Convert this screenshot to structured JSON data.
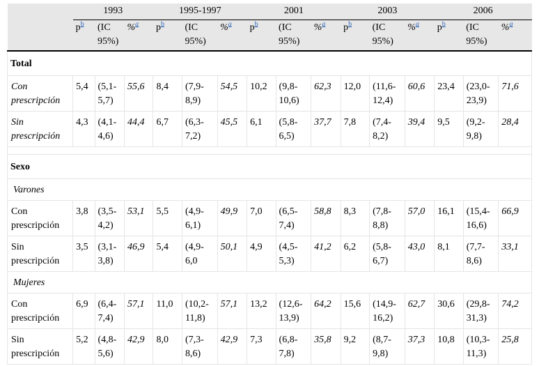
{
  "years": [
    "1993",
    "1995-1997",
    "2001",
    "2003",
    "2006"
  ],
  "subheaders": {
    "p": "p",
    "p_ref": "b",
    "ci": "(IC 95%)",
    "pct": "%",
    "pct_ref": "a"
  },
  "sections": {
    "total": "Total",
    "sexo": "Sexo",
    "varones": "Varones",
    "mujeres": "Mujeres"
  },
  "rows": {
    "total_con": {
      "label": "Con prescripción",
      "cells": [
        [
          "5,4",
          "(5,1-5,7)",
          "55,6"
        ],
        [
          "8,4",
          "(7,9-8,9)",
          "54,5"
        ],
        [
          "10,2",
          "(9,8-10,6)",
          "62,3"
        ],
        [
          "12,0",
          "(11,6-12,4)",
          "60,6"
        ],
        [
          "23,4",
          "(23,0-23,9)",
          "71,6"
        ]
      ]
    },
    "total_sin": {
      "label": "Sin prescripción",
      "cells": [
        [
          "4,3",
          "(4,1-4,6)",
          "44,4"
        ],
        [
          "6,7",
          "(6,3-7,2)",
          "45,5"
        ],
        [
          "6,1",
          "(5,8-6,5)",
          "37,7"
        ],
        [
          "7,8",
          "(7,4-8,2)",
          "39,4"
        ],
        [
          "9,5",
          "(9,2-9,8)",
          "28,4"
        ]
      ]
    },
    "var_con": {
      "label": "Con prescripción",
      "cells": [
        [
          "3,8",
          "(3,5-4,2)",
          "53,1"
        ],
        [
          "5,5",
          "(4,9-6,1)",
          "49,9"
        ],
        [
          "7,0",
          "(6,5-7,4)",
          "58,8"
        ],
        [
          "8,3",
          "(7,8-8,8)",
          "57,0"
        ],
        [
          "16,1",
          "(15,4-16,6)",
          "66,9"
        ]
      ]
    },
    "var_sin": {
      "label": "Sin prescripción",
      "cells": [
        [
          "3,5",
          "(3,1-3,8)",
          "46,9"
        ],
        [
          "5,4",
          "(4,9-6,0",
          "50,1"
        ],
        [
          "4,9",
          "(4,5-5,3)",
          "41,2"
        ],
        [
          "6,2",
          "(5,8-6,7)",
          "43,0"
        ],
        [
          "8,1",
          "(7,7-8,6)",
          "33,1"
        ]
      ]
    },
    "muj_con": {
      "label": "Con prescripción",
      "cells": [
        [
          "6,9",
          "(6,4-7,4)",
          "57,1"
        ],
        [
          "11,0",
          "(10,2-11,8)",
          "57,1"
        ],
        [
          "13,2",
          "(12,6-13,9)",
          "64,2"
        ],
        [
          "15,6",
          "(14,9-16,2)",
          "62,7"
        ],
        [
          "30,6",
          "(29,8-31,3)",
          "74,2"
        ]
      ]
    },
    "muj_sin": {
      "label": "Sin prescripción",
      "cells": [
        [
          "5,2",
          "(4,8-5,6)",
          "42,9"
        ],
        [
          "8,0",
          "(7,3-8,6)",
          "42,9"
        ],
        [
          "7,3",
          "(6,8-7,8)",
          "35,8"
        ],
        [
          "9,2",
          "(8,7-9,8)",
          "37,3"
        ],
        [
          "10,8",
          "(10,3-11,3)",
          "25,8"
        ]
      ]
    }
  }
}
